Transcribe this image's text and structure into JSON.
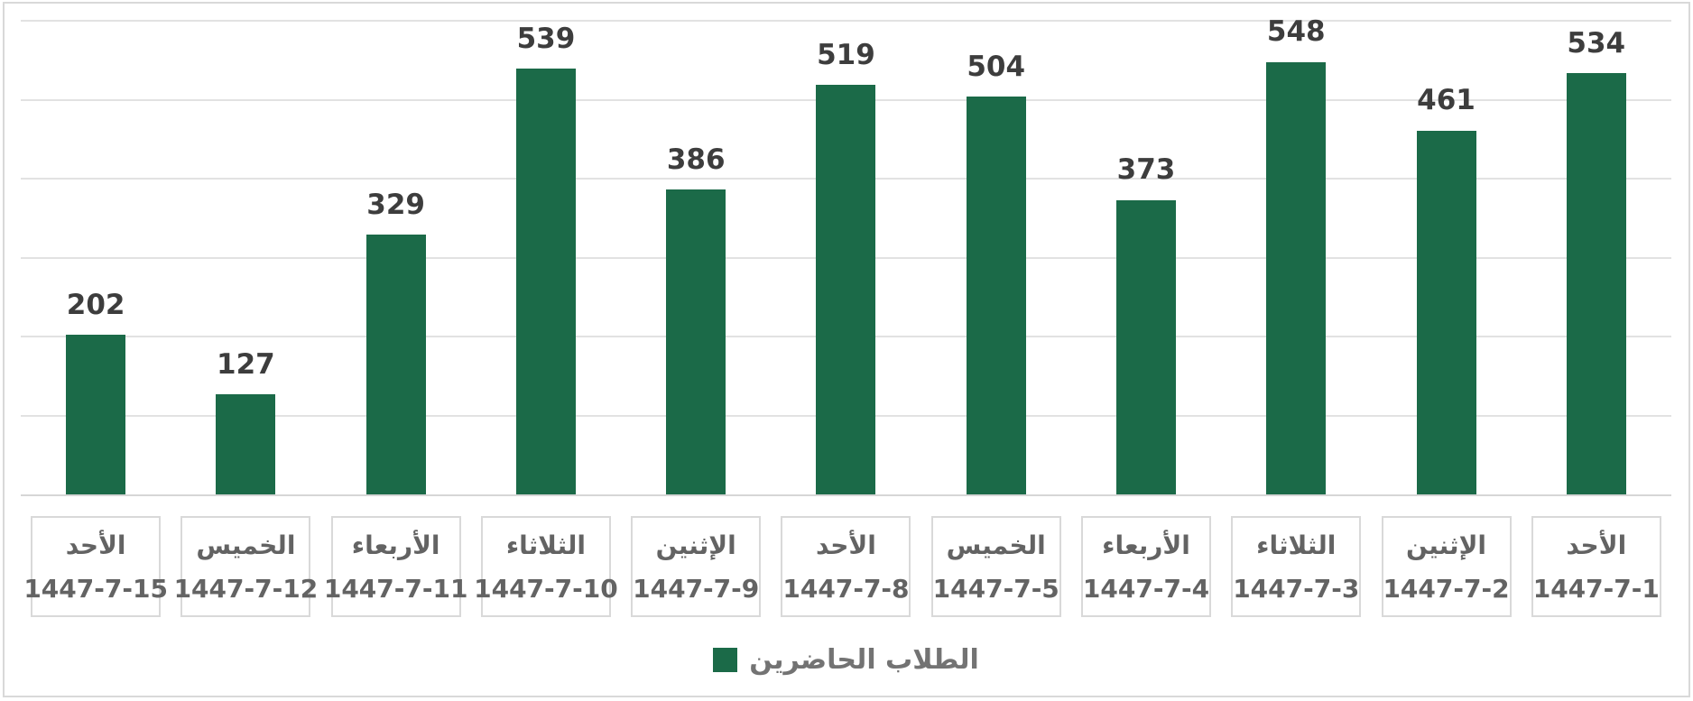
{
  "chart_data": {
    "type": "bar",
    "title": "",
    "legend": "الطلاب الحاضرين",
    "legend_position": "bottom-center",
    "bar_color": "#1b6a48",
    "gridline_color": "#e2e2e2",
    "value_label_color": "#3d3d3d",
    "axis_label_color": "#636363",
    "grid": true,
    "ylim": [
      0,
      600
    ],
    "gridline_step": 100,
    "categories": [
      {
        "day": "الأحد",
        "date": "1447-7-15"
      },
      {
        "day": "الخميس",
        "date": "1447-7-12"
      },
      {
        "day": "الأربعاء",
        "date": "1447-7-11"
      },
      {
        "day": "الثلاثاء",
        "date": "1447-7-10"
      },
      {
        "day": "الإثنين",
        "date": "1447-7-9"
      },
      {
        "day": "الأحد",
        "date": "1447-7-8"
      },
      {
        "day": "الخميس",
        "date": "1447-7-5"
      },
      {
        "day": "الأربعاء",
        "date": "1447-7-4"
      },
      {
        "day": "الثلاثاء",
        "date": "1447-7-3"
      },
      {
        "day": "الإثنين",
        "date": "1447-7-2"
      },
      {
        "day": "الأحد",
        "date": "1447-7-1"
      }
    ],
    "values": [
      202,
      127,
      329,
      539,
      386,
      519,
      504,
      373,
      548,
      461,
      534
    ]
  }
}
